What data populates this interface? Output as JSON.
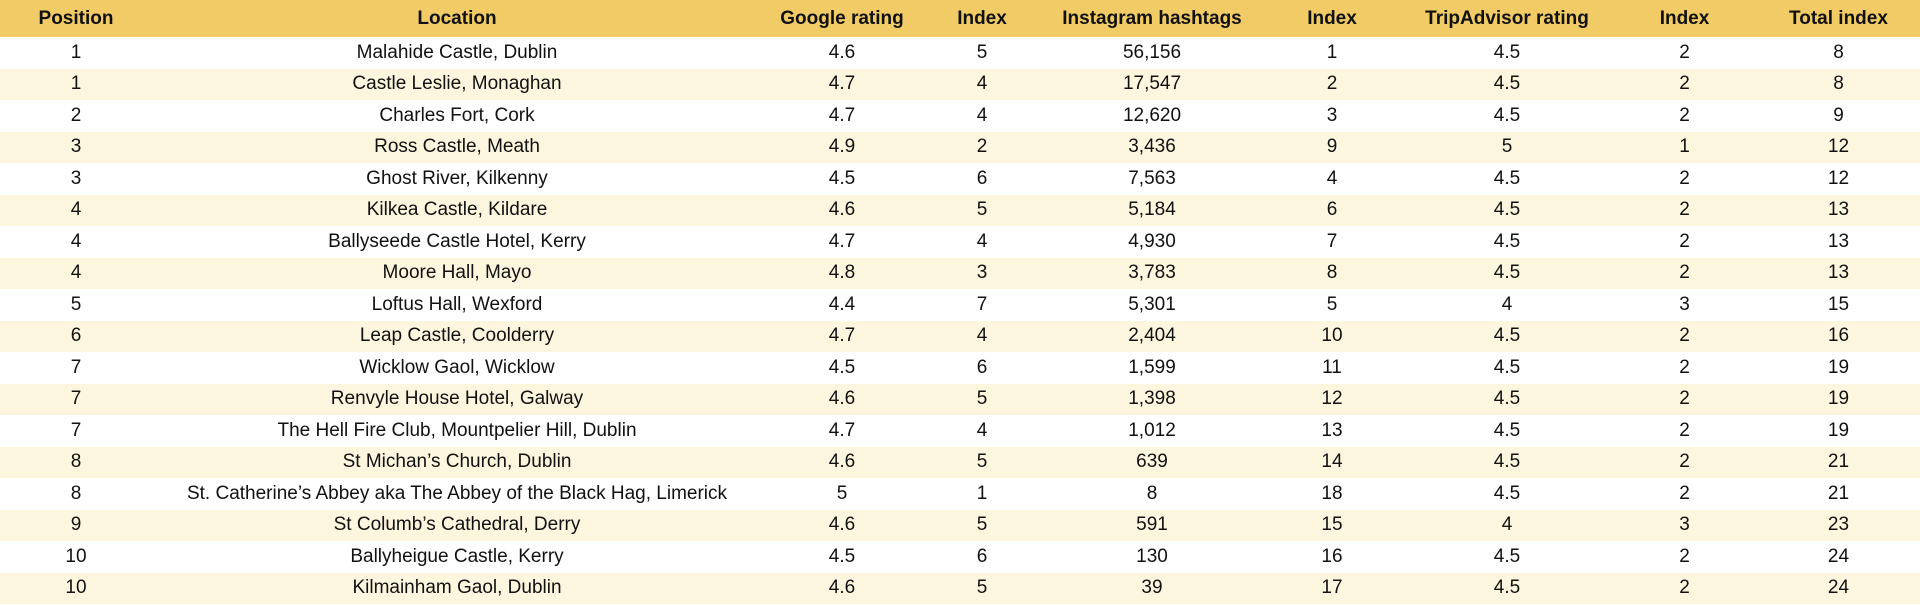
{
  "colors": {
    "header_background": "#f1cb65",
    "row_stripe": "#fdf6df",
    "row_plain": "#ffffff"
  },
  "table": {
    "headers": [
      "Position",
      "Location",
      "Google rating",
      "Index",
      "Instagram hashtags",
      "Index",
      "TripAdvisor rating",
      "Index",
      "Total index"
    ],
    "rows": [
      [
        "1",
        "Malahide Castle, Dublin",
        "4.6",
        "5",
        "56,156",
        "1",
        "4.5",
        "2",
        "8"
      ],
      [
        "1",
        "Castle Leslie, Monaghan",
        "4.7",
        "4",
        "17,547",
        "2",
        "4.5",
        "2",
        "8"
      ],
      [
        "2",
        "Charles Fort, Cork",
        "4.7",
        "4",
        "12,620",
        "3",
        "4.5",
        "2",
        "9"
      ],
      [
        "3",
        "Ross Castle, Meath",
        "4.9",
        "2",
        "3,436",
        "9",
        "5",
        "1",
        "12"
      ],
      [
        "3",
        "Ghost River, Kilkenny",
        "4.5",
        "6",
        "7,563",
        "4",
        "4.5",
        "2",
        "12"
      ],
      [
        "4",
        "Kilkea Castle, Kildare",
        "4.6",
        "5",
        "5,184",
        "6",
        "4.5",
        "2",
        "13"
      ],
      [
        "4",
        "Ballyseede Castle Hotel, Kerry",
        "4.7",
        "4",
        "4,930",
        "7",
        "4.5",
        "2",
        "13"
      ],
      [
        "4",
        "Moore Hall, Mayo",
        "4.8",
        "3",
        "3,783",
        "8",
        "4.5",
        "2",
        "13"
      ],
      [
        "5",
        "Loftus Hall, Wexford",
        "4.4",
        "7",
        "5,301",
        "5",
        "4",
        "3",
        "15"
      ],
      [
        "6",
        "Leap Castle, Coolderry",
        "4.7",
        "4",
        "2,404",
        "10",
        "4.5",
        "2",
        "16"
      ],
      [
        "7",
        "Wicklow Gaol, Wicklow",
        "4.5",
        "6",
        "1,599",
        "11",
        "4.5",
        "2",
        "19"
      ],
      [
        "7",
        "Renvyle House Hotel, Galway",
        "4.6",
        "5",
        "1,398",
        "12",
        "4.5",
        "2",
        "19"
      ],
      [
        "7",
        "The Hell Fire Club, Mountpelier Hill, Dublin",
        "4.7",
        "4",
        "1,012",
        "13",
        "4.5",
        "2",
        "19"
      ],
      [
        "8",
        "St Michan’s Church, Dublin",
        "4.6",
        "5",
        "639",
        "14",
        "4.5",
        "2",
        "21"
      ],
      [
        "8",
        "St. Catherine’s Abbey aka The Abbey of the Black Hag, Limerick",
        "5",
        "1",
        "8",
        "18",
        "4.5",
        "2",
        "21"
      ],
      [
        "9",
        "St Columb’s Cathedral, Derry",
        "4.6",
        "5",
        "591",
        "15",
        "4",
        "3",
        "23"
      ],
      [
        "10",
        "Ballyheigue Castle, Kerry",
        "4.5",
        "6",
        "130",
        "16",
        "4.5",
        "2",
        "24"
      ],
      [
        "10",
        "Kilmainham Gaol, Dublin",
        "4.6",
        "5",
        "39",
        "17",
        "4.5",
        "2",
        "24"
      ]
    ]
  }
}
